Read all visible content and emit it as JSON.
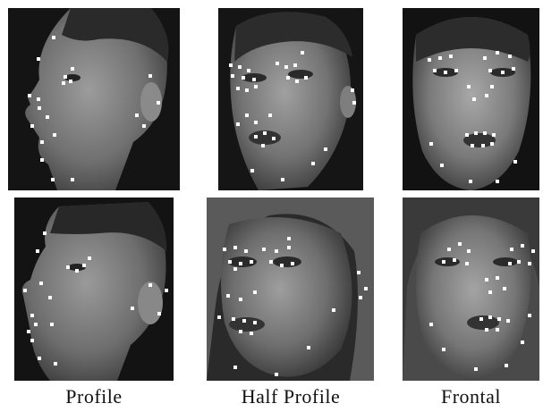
{
  "captions": {
    "profile": "Profile",
    "half_profile": "Half Profile",
    "frontal": "Frontal"
  },
  "figure": {
    "rows": 2,
    "columns": [
      "Profile",
      "Half Profile",
      "Frontal"
    ],
    "landmark_color": "#ffffff",
    "photo_style": "grayscale"
  }
}
